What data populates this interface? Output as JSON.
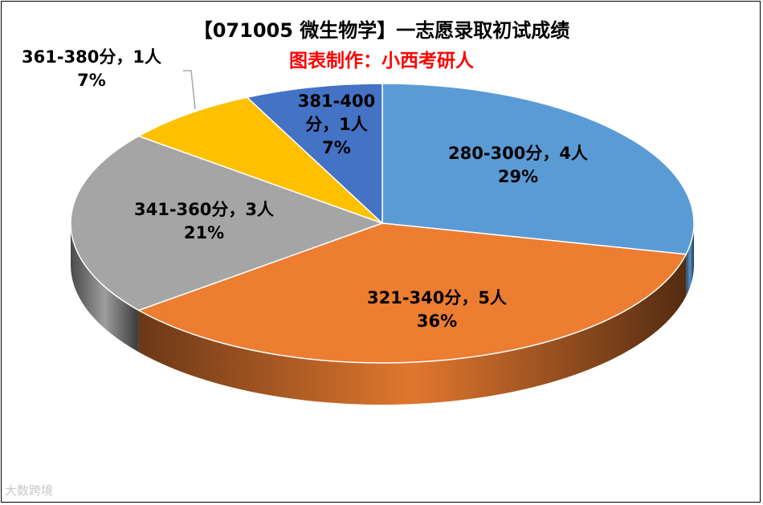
{
  "title": "【071005 微生物学】一志愿录取初试成绩",
  "subtitle": "图表制作：小西考研人",
  "watermark": "大数跨境",
  "chart_data": {
    "type": "pie",
    "style": "3d",
    "title": "【071005 微生物学】一志愿录取初试成绩",
    "subtitle": "图表制作：小西考研人",
    "slices": [
      {
        "label": "280-300分，4人",
        "value": 4,
        "percent": "29%",
        "color": "#5B9BD5"
      },
      {
        "label": "321-340分，5人",
        "value": 5,
        "percent": "36%",
        "color": "#ED7D31"
      },
      {
        "label": "341-360分，3人",
        "value": 3,
        "percent": "21%",
        "color": "#A5A5A5"
      },
      {
        "label": "361-380分，1人",
        "value": 1,
        "percent": "7%",
        "color": "#FFC000"
      },
      {
        "label": "381-400分，1人",
        "value": 1,
        "percent": "7%",
        "color": "#4472C4"
      }
    ]
  }
}
